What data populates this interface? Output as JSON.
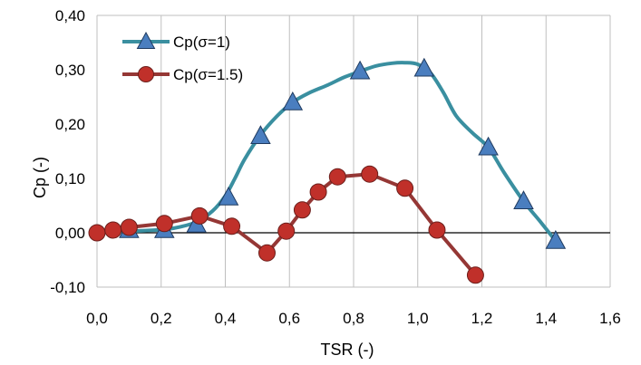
{
  "chart_data": {
    "type": "line",
    "xlabel": "TSR (-)",
    "ylabel": "Cp (-)",
    "xlim": [
      0.0,
      1.6
    ],
    "ylim": [
      -0.1,
      0.4
    ],
    "x_ticks": [
      "0,0",
      "0,2",
      "0,4",
      "0,6",
      "0,8",
      "1,0",
      "1,2",
      "1,4",
      "1,6"
    ],
    "y_ticks": [
      "-0,10",
      "0,00",
      "0,10",
      "0,20",
      "0,30",
      "0,40"
    ],
    "grid": "vertical",
    "legend_position": "top-left",
    "series": [
      {
        "name": "Cp(σ=1)",
        "color": "#3a8fa0",
        "marker": "triangle",
        "marker_color": "#4a7ebf",
        "x": [
          0.1,
          0.21,
          0.31,
          0.41,
          0.51,
          0.61,
          0.82,
          1.02,
          1.22,
          1.33,
          1.43
        ],
        "y": [
          0.005,
          0.005,
          0.015,
          0.065,
          0.178,
          0.24,
          0.297,
          0.302,
          0.157,
          0.058,
          -0.015
        ],
        "curve_points": {
          "x": [
            0.0,
            0.05,
            0.1,
            0.15,
            0.21,
            0.26,
            0.31,
            0.36,
            0.4,
            0.43,
            0.46,
            0.51,
            0.56,
            0.61,
            0.66,
            0.72,
            0.77,
            0.82,
            0.87,
            0.92,
            0.96,
            1.0,
            1.04,
            1.08,
            1.12,
            1.17,
            1.22,
            1.27,
            1.33,
            1.38,
            1.43
          ],
          "y": [
            0.0,
            0.002,
            0.003,
            0.004,
            0.006,
            0.011,
            0.02,
            0.04,
            0.068,
            0.1,
            0.135,
            0.18,
            0.214,
            0.24,
            0.257,
            0.272,
            0.286,
            0.297,
            0.307,
            0.312,
            0.313,
            0.31,
            0.294,
            0.258,
            0.215,
            0.184,
            0.157,
            0.11,
            0.058,
            0.022,
            -0.015
          ]
        }
      },
      {
        "name": "Cp(σ=1.5)",
        "color": "#953735",
        "marker": "circle",
        "marker_color": "#c0302a",
        "x": [
          0.0,
          0.05,
          0.1,
          0.21,
          0.32,
          0.42,
          0.53,
          0.59,
          0.64,
          0.69,
          0.75,
          0.85,
          0.96,
          1.06,
          1.18
        ],
        "y": [
          0.0,
          0.005,
          0.01,
          0.017,
          0.031,
          0.012,
          -0.037,
          0.003,
          0.042,
          0.075,
          0.103,
          0.108,
          0.082,
          0.005,
          -0.078
        ]
      }
    ]
  }
}
